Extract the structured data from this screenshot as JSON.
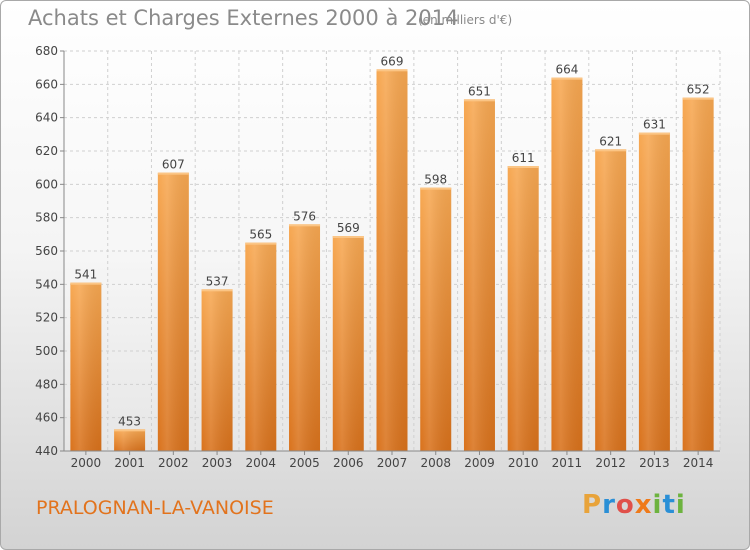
{
  "chart_data": {
    "type": "bar",
    "title": "Achats et Charges Externes 2000 à 2014",
    "subtitle": "(en milliers d'€)",
    "categories": [
      "2000",
      "2001",
      "2002",
      "2003",
      "2004",
      "2005",
      "2006",
      "2007",
      "2008",
      "2009",
      "2010",
      "2011",
      "2012",
      "2013",
      "2014"
    ],
    "values": [
      541,
      453,
      607,
      537,
      565,
      576,
      569,
      669,
      598,
      651,
      611,
      664,
      621,
      631,
      652
    ],
    "ylim": [
      440,
      680
    ],
    "yticks": [
      440,
      460,
      480,
      500,
      520,
      540,
      560,
      580,
      600,
      620,
      640,
      660,
      680
    ],
    "grid": true,
    "bar_color": "#f5a04a"
  },
  "footer": {
    "location": "PRALOGNAN-LA-VANOISE",
    "brand_letters": [
      "P",
      "r",
      "o",
      "x",
      "i",
      "t",
      "i"
    ],
    "brand_colors": [
      "#e8a33a",
      "#2a8fd6",
      "#e0504a",
      "#ef7a1a",
      "#6db33f",
      "#2a8fd6",
      "#6db33f"
    ]
  }
}
